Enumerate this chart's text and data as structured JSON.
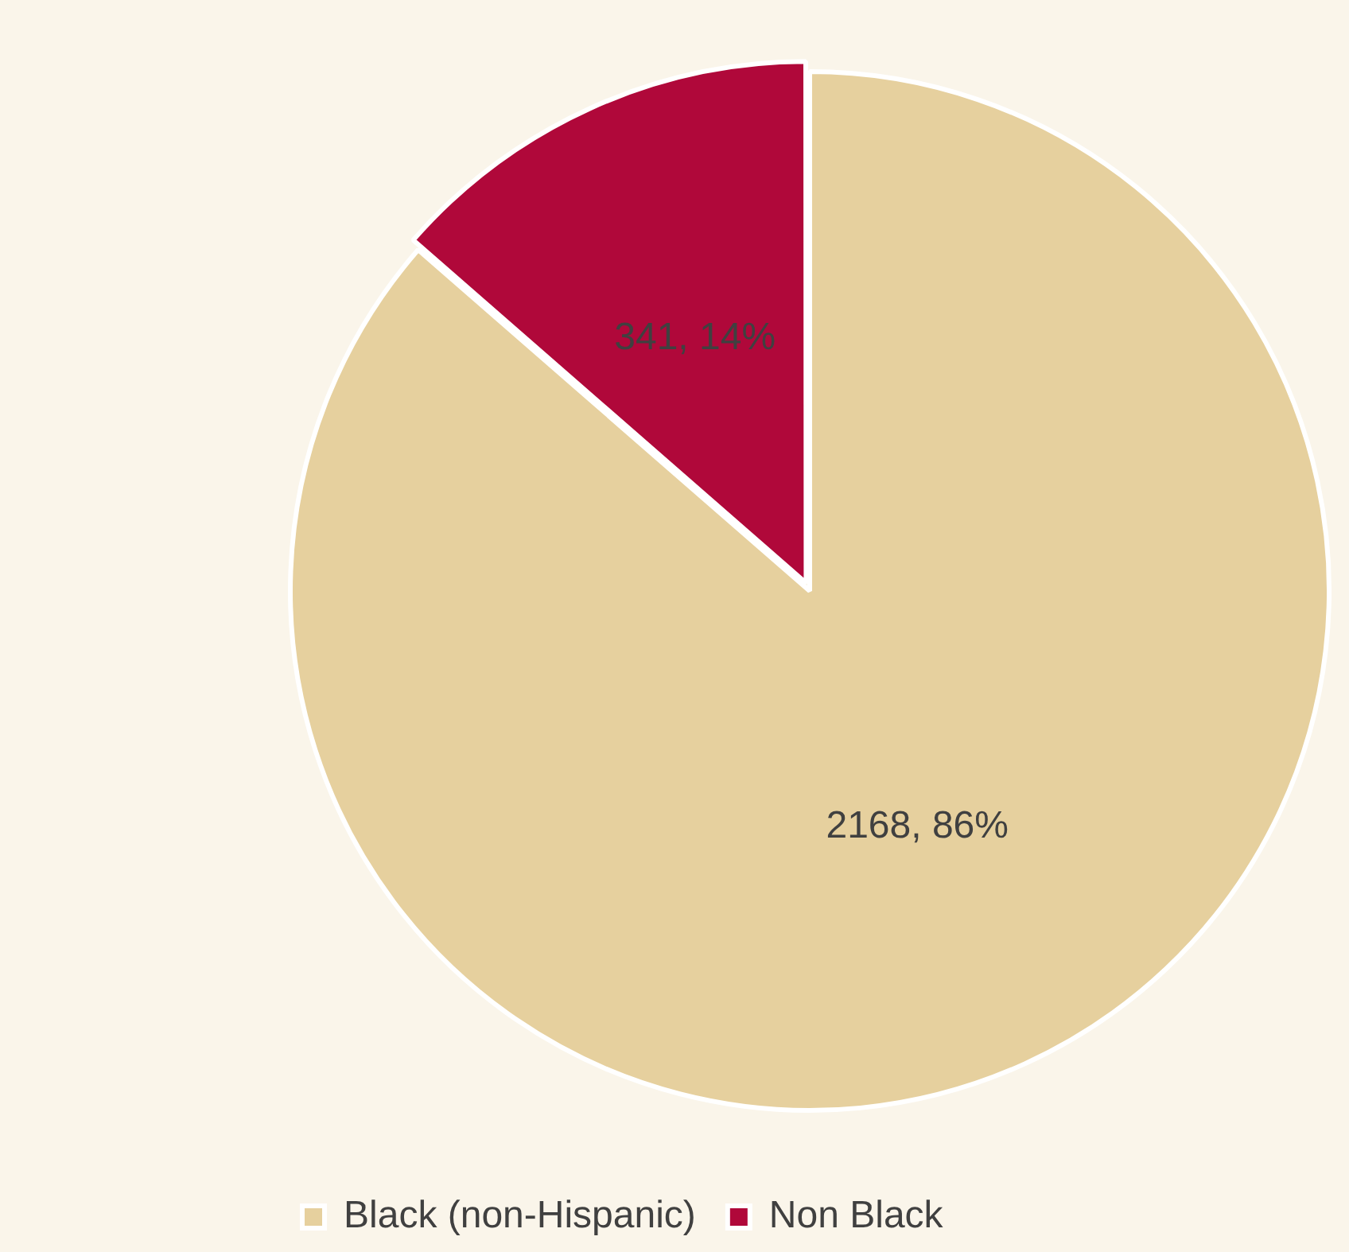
{
  "chart_data": {
    "type": "pie",
    "categories": [
      "Black (non-Hispanic)",
      "Non Black"
    ],
    "values": [
      2168,
      341
    ],
    "colors": [
      "#e6d09e",
      "#b0083a"
    ],
    "value_labels": [
      "2168, 86%",
      "341, 14%"
    ],
    "legend": "bottom left"
  }
}
